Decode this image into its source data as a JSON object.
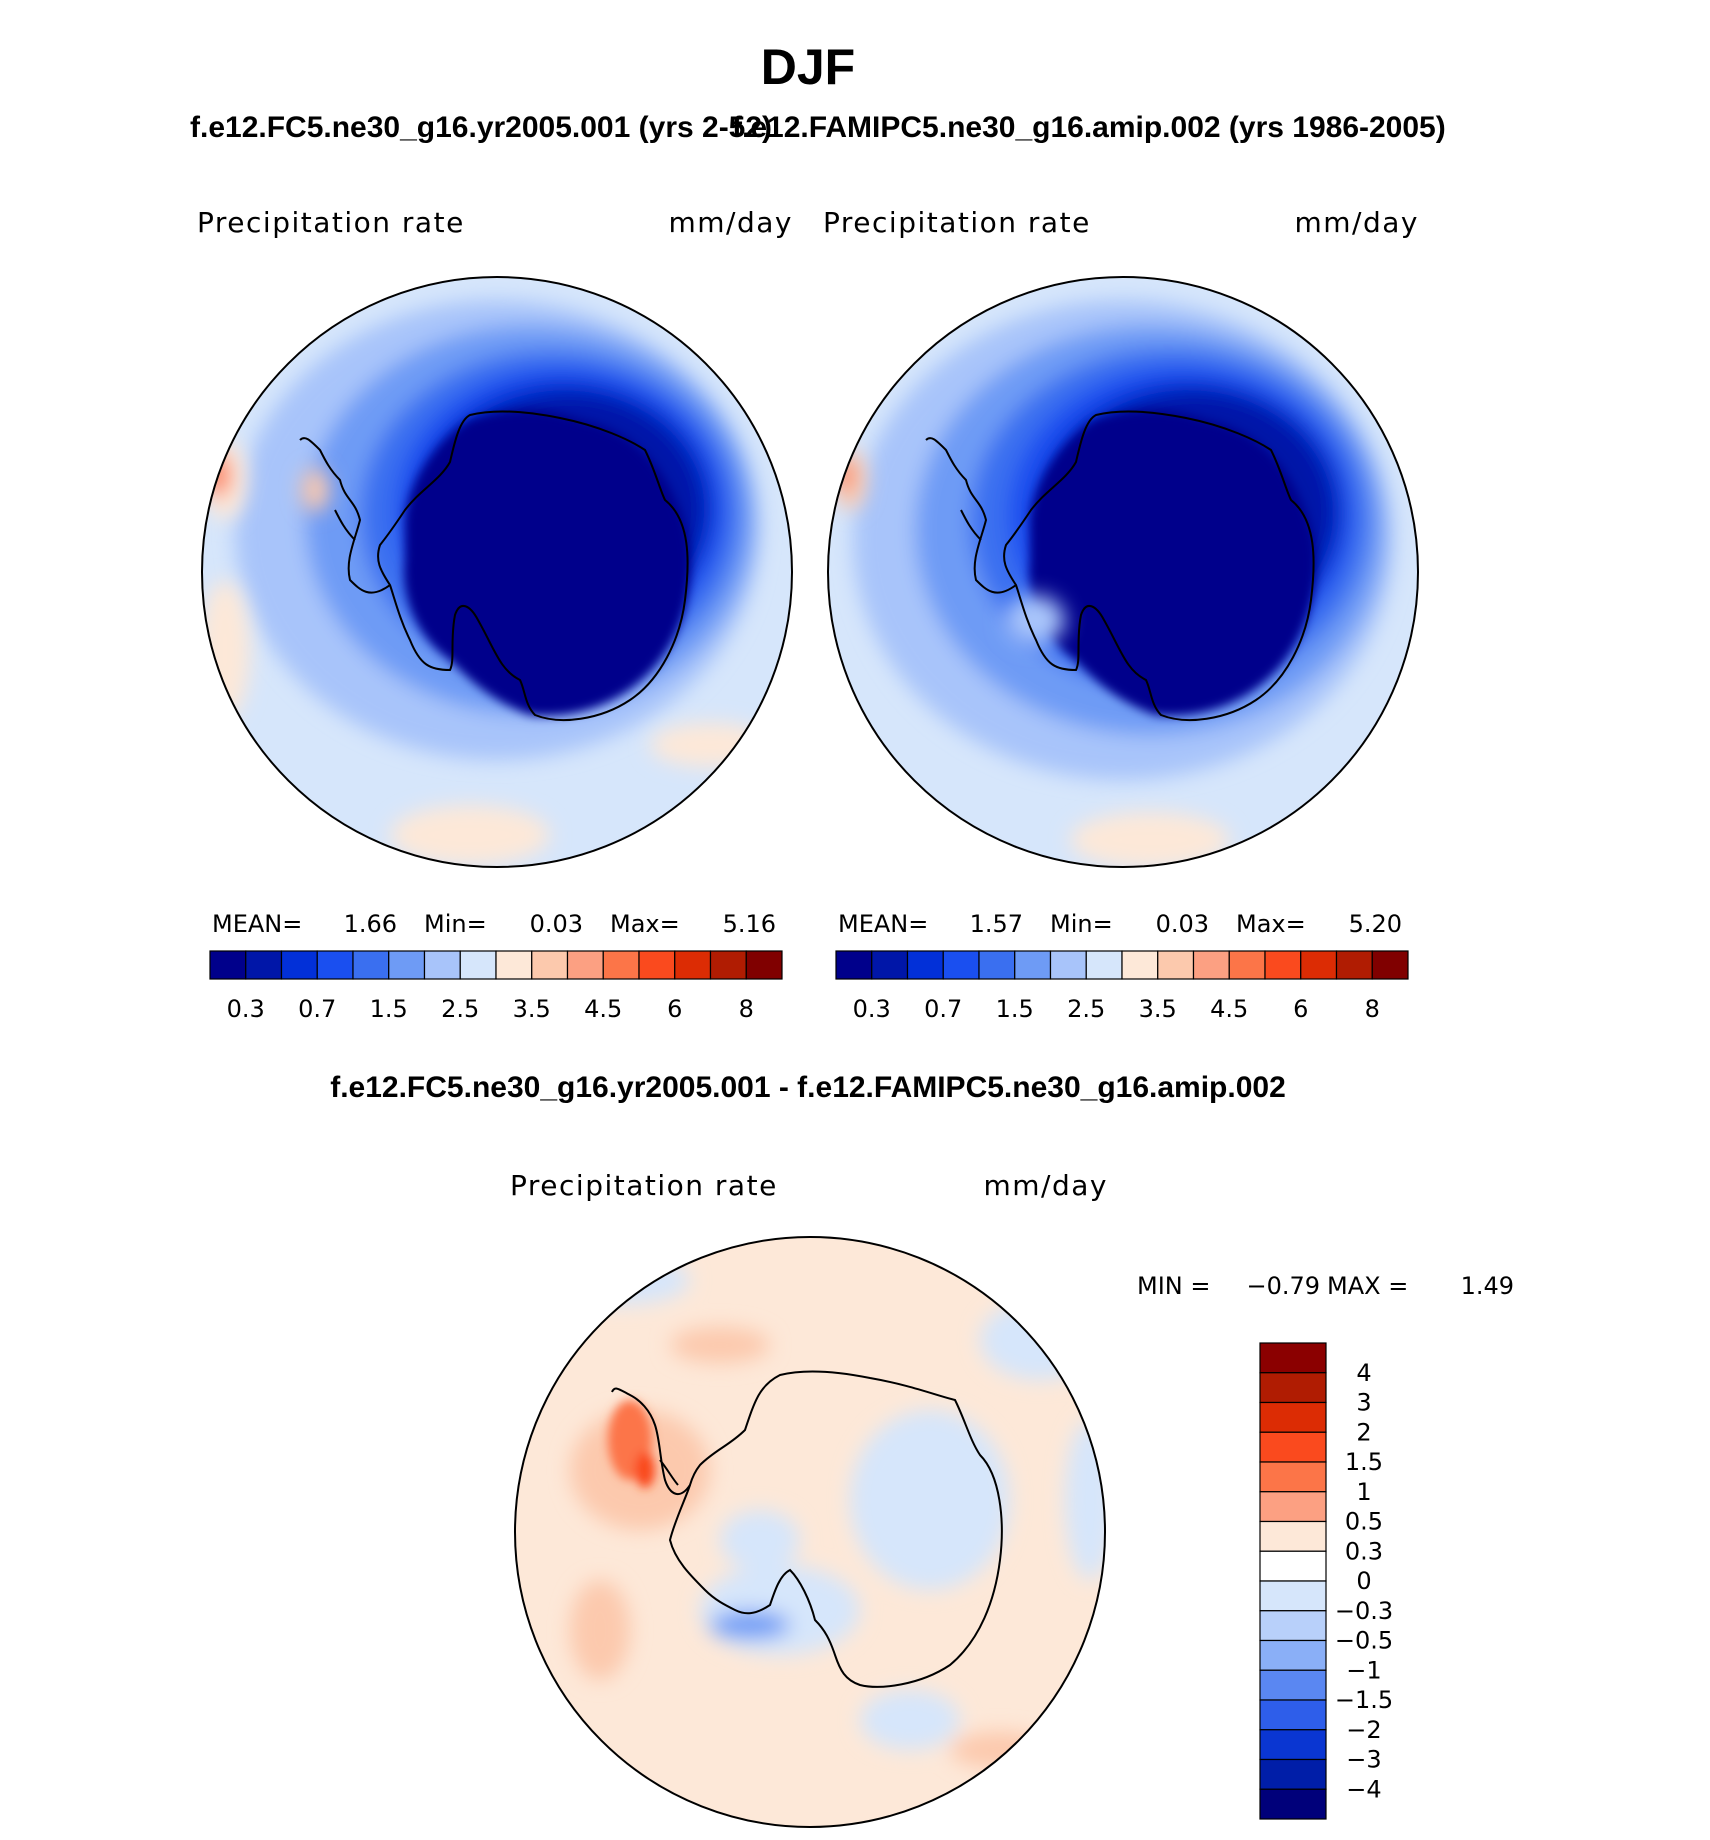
{
  "figure": {
    "title": "DJF",
    "difference_title": "f.e12.FC5.ne30_g16.yr2005.001 - f.e12.FAMIPC5.ne30_g16.amip.002"
  },
  "chart_data": [
    {
      "type": "heatmap",
      "projection": "south polar stereographic",
      "title": "f.e12.FC5.ne30_g16.yr2005.001 (yrs 2-52)",
      "variable": "Precipitation rate",
      "units": "mm/day",
      "stats": {
        "mean_label": "MEAN=",
        "mean": "1.66",
        "min_label": "Min=",
        "min": "0.03",
        "max_label": "Max=",
        "max": "5.16"
      },
      "colorbar": {
        "ticks": [
          "0.3",
          "0.7",
          "1.5",
          "2.5",
          "3.5",
          "4.5",
          "6",
          "8"
        ],
        "colors": [
          "#00008b",
          "#0016a8",
          "#0230d8",
          "#1a4ff0",
          "#3a6ff0",
          "#6e9bf5",
          "#a8c4fa",
          "#d6e6fb",
          "#fde8d8",
          "#fcc9ad",
          "#fca082",
          "#fc7548",
          "#fa4a1e",
          "#dc2c04",
          "#b01c02",
          "#800000"
        ]
      }
    },
    {
      "type": "heatmap",
      "projection": "south polar stereographic",
      "title": "f.e12.FAMIPC5.ne30_g16.amip.002 (yrs 1986-2005)",
      "variable": "Precipitation rate",
      "units": "mm/day",
      "stats": {
        "mean_label": "MEAN=",
        "mean": "1.57",
        "min_label": "Min=",
        "min": "0.03",
        "max_label": "Max=",
        "max": "5.20"
      },
      "colorbar": {
        "ticks": [
          "0.3",
          "0.7",
          "1.5",
          "2.5",
          "3.5",
          "4.5",
          "6",
          "8"
        ],
        "colors": [
          "#00008b",
          "#0016a8",
          "#0230d8",
          "#1a4ff0",
          "#3a6ff0",
          "#6e9bf5",
          "#a8c4fa",
          "#d6e6fb",
          "#fde8d8",
          "#fcc9ad",
          "#fca082",
          "#fc7548",
          "#fa4a1e",
          "#dc2c04",
          "#b01c02",
          "#800000"
        ]
      }
    },
    {
      "type": "heatmap",
      "projection": "south polar stereographic",
      "title": "f.e12.FC5.ne30_g16.yr2005.001 - f.e12.FAMIPC5.ne30_g16.amip.002",
      "variable": "Precipitation rate",
      "units": "mm/day",
      "stats": {
        "min_label": "MIN =",
        "min": "−0.79",
        "max_label": "MAX =",
        "max": "1.49"
      },
      "colorbar": {
        "ticks": [
          "4",
          "3",
          "2",
          "1.5",
          "1",
          "0.5",
          "0.3",
          "0",
          "−0.3",
          "−0.5",
          "−1",
          "−1.5",
          "−2",
          "−3",
          "−4"
        ],
        "colors": [
          "#8b0000",
          "#b01c02",
          "#dc2c04",
          "#fa4a1e",
          "#fc7548",
          "#fca082",
          "#fde8d8",
          "#ffffff",
          "#d6e6fb",
          "#b8d0fa",
          "#8aaff7",
          "#5a87f2",
          "#2e5eea",
          "#0a36d2",
          "#001ea8",
          "#00007a"
        ]
      }
    }
  ]
}
